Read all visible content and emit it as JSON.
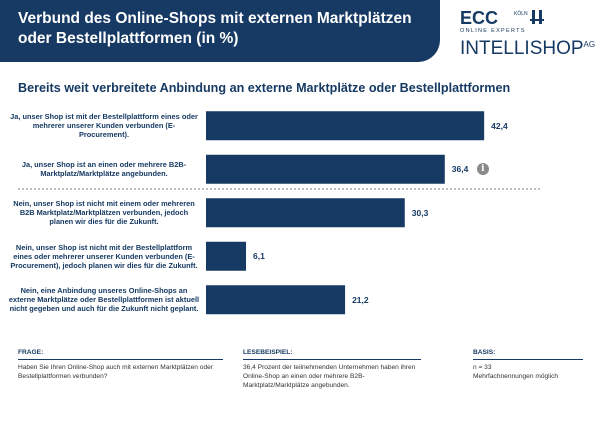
{
  "header": {
    "title": "Verbund des Online-Shops mit externen Marktplätzen oder Bestellplattformen (in %)"
  },
  "logos": {
    "ecc": "ECC",
    "ecc_city": "KÖLN",
    "ecc_sub": "ONLINE EXPERTS",
    "intellishop": "INTELLISHOP",
    "intellishop_suffix": "AG"
  },
  "colors": {
    "bar": "#163a63",
    "header": "#163a63",
    "divider": "#555555"
  },
  "chart_data": {
    "type": "bar",
    "orientation": "horizontal",
    "title": "Bereits weit verbreitete Anbindung an externe Marktplätze oder Bestellplattformen",
    "categories": [
      "Ja, unser Shop ist mit der Bestellplattform eines oder mehrerer unserer Kunden verbunden (E-Procurement).",
      "Ja, unser Shop ist an einen oder mehrere B2B-Marktplatz/Marktplätze angebunden.",
      "Nein, unser Shop ist nicht mit einem oder mehreren B2B Marktplatz/Marktplätzen verbunden, jedoch planen wir dies für die Zukunft.",
      "Nein, unser Shop ist nicht mit der Bestellplattform eines oder mehrerer unserer Kunden verbunden (E-Procurement), jedoch planen wir dies für die Zukunft.",
      "Nein, eine Anbindung unseres Online-Shops an externe Marktplätze oder Bestellplattformen ist aktuell nicht gegeben und auch für die Zukunft nicht geplant."
    ],
    "values": [
      42.4,
      36.4,
      30.3,
      6.1,
      21.2
    ],
    "value_labels": [
      "42,4",
      "36,4",
      "30,3",
      "6,1",
      "21,2"
    ],
    "xlim": [
      0,
      50
    ],
    "grid": false,
    "legend": "none",
    "annotation": {
      "category_index": 1,
      "icon": "info-icon",
      "text": "i"
    }
  },
  "footer": {
    "frage": {
      "heading": "FRAGE:",
      "text": "Haben Sie Ihren Online-Shop auch mit externen Marktplätzen oder Bestellplattformen verbunden?"
    },
    "lesebeispiel": {
      "heading": "LESEBEISPIEL:",
      "text": "36,4 Prozent der teilnehmenden Unternehmen haben ihren Online-Shop an einen oder mehrere B2B-Marktplatz/Marktplätze angebunden."
    },
    "basis": {
      "heading": "BASIS:",
      "line1": "n = 33",
      "line2": "Mehrfachnennungen möglich"
    }
  }
}
